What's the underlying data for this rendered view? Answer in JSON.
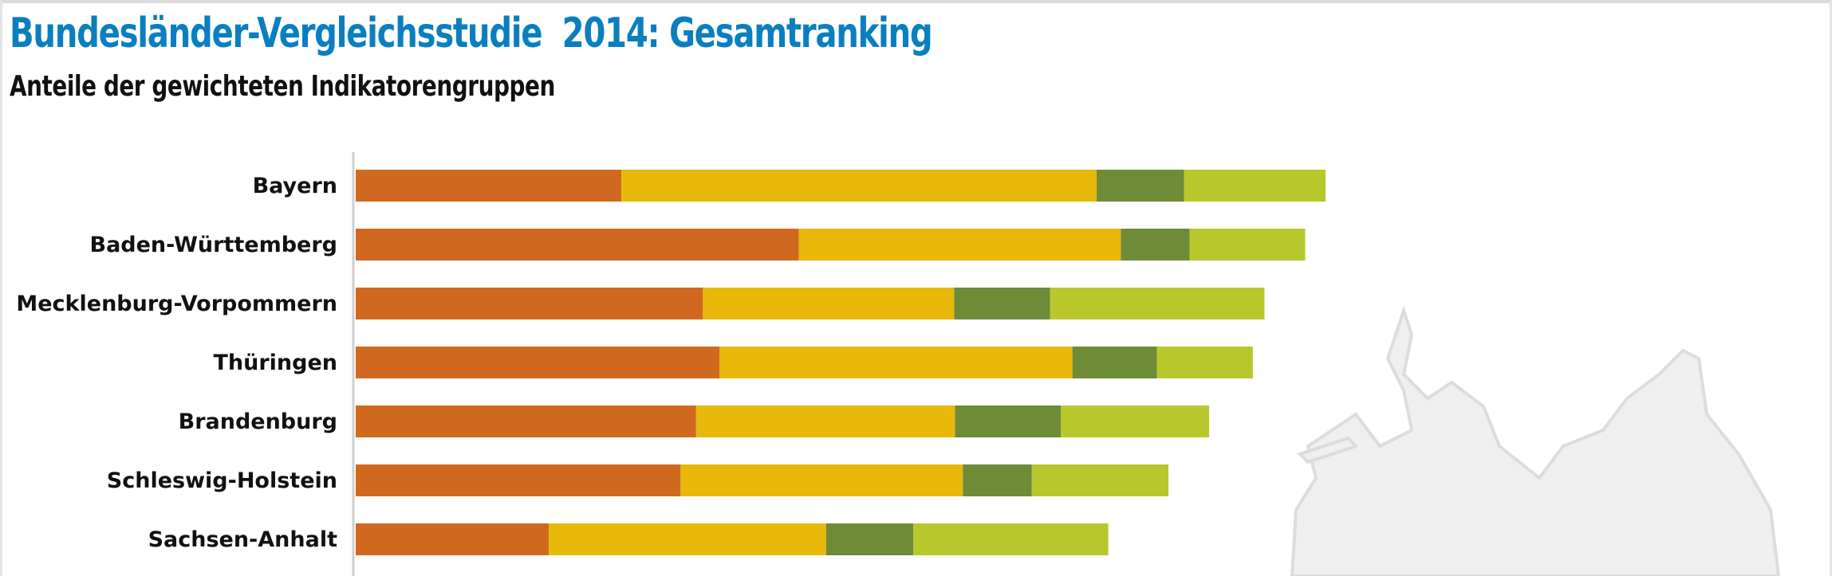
{
  "chart_data": {
    "type": "bar",
    "orientation": "horizontal",
    "stacked": true,
    "title": "Bundesländer-Vergleichsstudie  2014: Gesamtranking",
    "subtitle": "Anteile der gewichteten Indikatorengruppen",
    "categories": [
      "Bayern",
      "Baden-Württemberg",
      "Mecklenburg-Vorpommern",
      "Thüringen",
      "Brandenburg",
      "Schleswig-Holstein",
      "Sachsen-Anhalt"
    ],
    "series": [
      {
        "color": "#d0691f",
        "values": [
          27.4,
          45.7,
          35.8,
          37.5,
          35.1,
          33.5,
          19.9
        ]
      },
      {
        "color": "#e8b90a",
        "values": [
          49.0,
          33.2,
          25.9,
          36.4,
          26.7,
          29.1,
          28.6
        ]
      },
      {
        "color": "#6e8b37",
        "values": [
          9.0,
          7.1,
          9.9,
          8.7,
          10.9,
          7.1,
          9.0
        ]
      },
      {
        "color": "#b8c82c",
        "values": [
          14.6,
          11.9,
          22.1,
          9.9,
          15.3,
          14.1,
          20.1
        ]
      }
    ],
    "xlim": [
      0,
      100
    ],
    "grid": false,
    "legend": "none",
    "background_image": "germany-map-outline"
  }
}
